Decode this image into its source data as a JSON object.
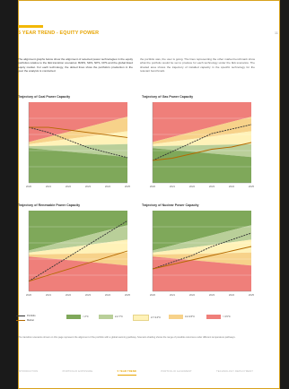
{
  "page": {
    "title": "5 YEAR TREND - EQUITY POWER",
    "page_number": "11",
    "intro_left": "The alignment graphs below show the alignment of selected power technologies in the equity portfolios relative to the IEA transition scenarios: B2DS, SDS, NPS, CPS and the global listed equity market. For each technology, the dotted lines show the portfolio's production in the year the analysis is conducted.",
    "intro_right": "the portfolio was, the user is going. The lines representing the other market benchmark show what the portfolio would be set to produce for each technology under the IEA scenarios. The shaded area shows the trajectory of installed capacity in the specific technology for the relevant benchmark."
  },
  "chart_data": [
    {
      "type": "area",
      "title": "Trajectory of Coal Power Capacity",
      "x": [
        "2020",
        "2021",
        "2022",
        "2023",
        "2024",
        "2025"
      ],
      "ylabel": "",
      "series": [
        {
          "values": [
            100,
            98,
            95,
            92,
            90,
            88
          ]
        },
        {
          "values": [
            100,
            100,
            99,
            98,
            97,
            96
          ]
        }
      ]
    },
    {
      "type": "area",
      "title": "Trajectory of Gas Power Capacity",
      "x": [
        "2020",
        "2021",
        "2022",
        "2023",
        "2024",
        "2025"
      ],
      "ylabel": "",
      "series": [
        {
          "values": [
            100,
            104,
            108,
            112,
            114,
            116
          ]
        },
        {
          "values": [
            100,
            101,
            103,
            105,
            106,
            108
          ]
        }
      ]
    },
    {
      "type": "area",
      "title": "Trajectory of Renewable Power Capacity",
      "x": [
        "2020",
        "2021",
        "2022",
        "2023",
        "2024",
        "2025"
      ],
      "ylabel": "",
      "series": [
        {
          "values": [
            100,
            112,
            124,
            136,
            148,
            160
          ]
        },
        {
          "values": [
            100,
            106,
            112,
            118,
            124,
            130
          ]
        }
      ]
    },
    {
      "type": "area",
      "title": "Trajectory of Nuclear Power Capacity",
      "x": [
        "2020",
        "2021",
        "2022",
        "2023",
        "2024",
        "2025"
      ],
      "ylabel": "",
      "series": [
        {
          "values": [
            100,
            103,
            106,
            110,
            113,
            116
          ]
        },
        {
          "values": [
            100,
            102,
            104,
            106,
            108,
            110
          ]
        }
      ]
    }
  ],
  "legend": {
    "items": [
      {
        "label": "Portfolio",
        "color": "#333333"
      },
      {
        "label": "Market",
        "color": "#b46a00"
      },
      {
        "label": "< 2°C",
        "color": "#7fa85a"
      },
      {
        "label": "2-2.7°C",
        "color": "#b9cf99"
      },
      {
        "label": "2.7-3.2°C",
        "color": "#fff2b8"
      },
      {
        "label": "3.2-3.5°C",
        "color": "#f7d28a"
      },
      {
        "label": "> 3.5°C",
        "color": "#ef7f7a"
      }
    ]
  },
  "footnote": "The transition scenarios shown on this page represent the alignment of the portfolio with a global warming pathway. Scenario shading shows the range of possible outcomes under different temperature pathways.",
  "nav": {
    "items": [
      "INTRODUCTION",
      "PORTFOLIO EXPOSURE",
      "5 YEAR TREND",
      "PORTFOLIO ALIGNMENT",
      "TECHNOLOGY DEPLOYMENT"
    ],
    "active_index": 2
  },
  "colors": {
    "accent": "#e7a400",
    "red": "#ef7f7a",
    "orange": "#f7d28a",
    "yellow": "#fff2b8",
    "lightgreen": "#b9cf99",
    "green": "#7fa85a"
  }
}
